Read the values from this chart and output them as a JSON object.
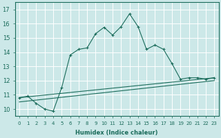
{
  "xlabel": "Humidex (Indice chaleur)",
  "background_color": "#cce8e8",
  "grid_color": "#b0d0d0",
  "line_color": "#1a6b5a",
  "xlim": [
    -0.5,
    23.5
  ],
  "ylim": [
    9.5,
    17.5
  ],
  "xticks": [
    0,
    1,
    2,
    3,
    4,
    5,
    6,
    7,
    8,
    9,
    10,
    11,
    12,
    13,
    14,
    15,
    16,
    17,
    18,
    19,
    20,
    21,
    22,
    23
  ],
  "yticks": [
    10,
    11,
    12,
    13,
    14,
    15,
    16,
    17
  ],
  "curve1_x": [
    0,
    1,
    2,
    3,
    4,
    5,
    6,
    7,
    8,
    9,
    10,
    11,
    12,
    13,
    14,
    15,
    16,
    17,
    18,
    19,
    20,
    21,
    22,
    23
  ],
  "curve1_y": [
    10.8,
    10.9,
    10.4,
    10.0,
    9.85,
    11.5,
    13.8,
    14.2,
    14.3,
    15.3,
    15.75,
    15.2,
    15.8,
    16.7,
    15.8,
    14.2,
    14.5,
    14.2,
    13.2,
    12.1,
    12.2,
    12.2,
    12.1,
    12.2
  ],
  "curve2_x": [
    0,
    23
  ],
  "curve2_y": [
    10.8,
    12.2
  ],
  "curve3_x": [
    0,
    23
  ],
  "curve3_y": [
    10.5,
    12.0
  ]
}
